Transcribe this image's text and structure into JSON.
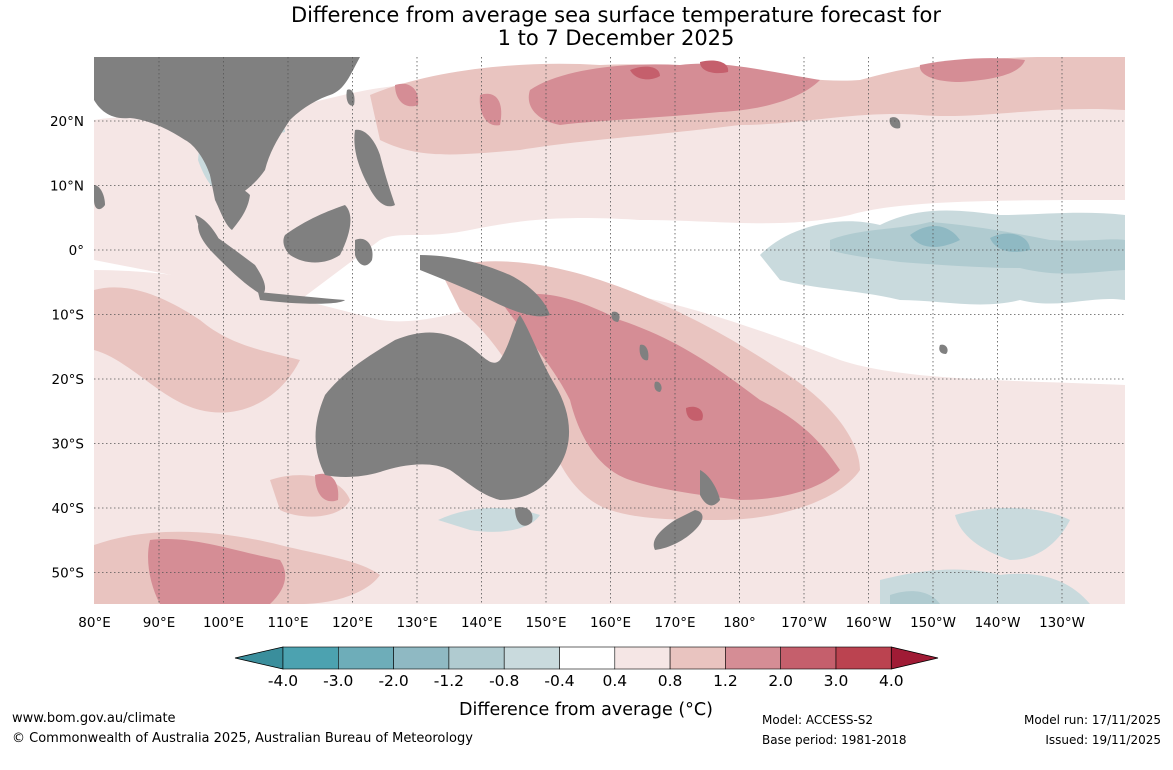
{
  "title_line1": "Difference from average sea surface temperature forecast for",
  "title_line2": "1 to 7 December 2025",
  "map": {
    "lon_labels": [
      "80°E",
      "90°E",
      "100°E",
      "110°E",
      "120°E",
      "130°E",
      "140°E",
      "150°E",
      "160°E",
      "170°E",
      "180°",
      "170°W",
      "160°W",
      "150°W",
      "140°W",
      "130°W"
    ],
    "lat_labels": [
      "20°N",
      "10°N",
      "0°",
      "10°S",
      "20°S",
      "30°S",
      "40°S",
      "50°S"
    ],
    "land_color": "#808080",
    "ocean_color": "#ffffff"
  },
  "colorbar": {
    "ticks": [
      "-4.0",
      "-3.0",
      "-2.0",
      "-1.2",
      "-0.8",
      "-0.4",
      "0.4",
      "0.8",
      "1.2",
      "2.0",
      "3.0",
      "4.0"
    ],
    "colors": [
      "#3a8e9c",
      "#4ca2b0",
      "#6eadb9",
      "#8fb9c3",
      "#b0cbd0",
      "#c9dadd",
      "#ffffff",
      "#f5e6e5",
      "#e9c4c0",
      "#d58d95",
      "#c55f6c",
      "#bb4350",
      "#a01b35"
    ],
    "label": "Difference from average (°C)"
  },
  "footer": {
    "website": "www.bom.gov.au/climate",
    "copyright": "© Commonwealth of Australia 2025, Australian Bureau of Meteorology",
    "model": "Model: ACCESS-S2",
    "base_period": "Base period: 1981-2018",
    "model_run": "Model run: 17/11/2025",
    "issued": "Issued: 19/11/2025"
  }
}
